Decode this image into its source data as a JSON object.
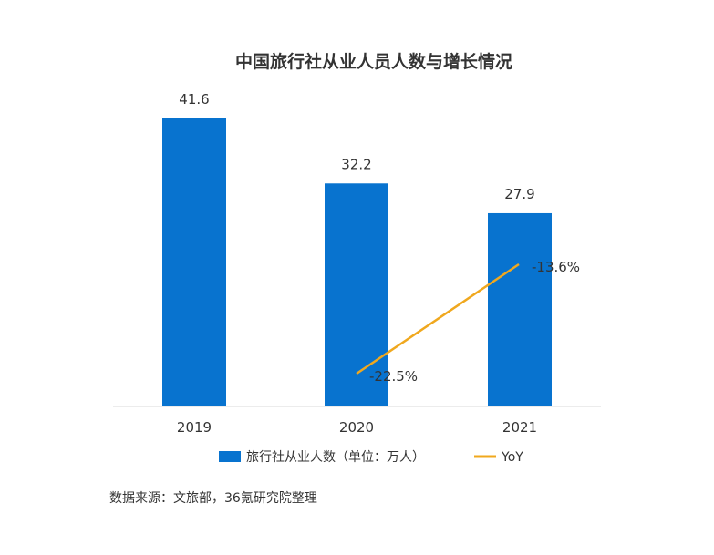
{
  "chart_data": {
    "type": "bar",
    "title": "中国旅行社从业人员人数与增长情况",
    "categories": [
      "2019",
      "2020",
      "2021"
    ],
    "series": [
      {
        "name": "旅行社从业人数（单位：万人）",
        "type": "bar",
        "values": [
          41.6,
          32.2,
          27.9
        ],
        "labels": [
          "41.6",
          "32.2",
          "27.9"
        ],
        "color": "#0873CF"
      },
      {
        "name": "YoY",
        "type": "line",
        "values": [
          null,
          -22.5,
          -13.6
        ],
        "labels": [
          "",
          "-22.5%",
          "-13.6%"
        ],
        "color": "#F0A81E"
      }
    ],
    "legend": "bottom",
    "grid": false
  },
  "source": "数据来源：文旅部，36氪研究院整理"
}
